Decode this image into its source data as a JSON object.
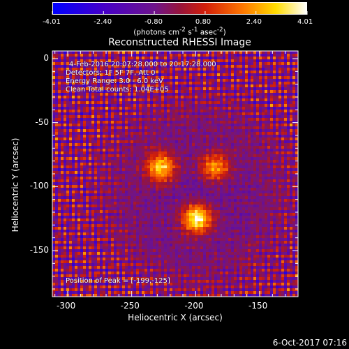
{
  "chart_data": {
    "type": "heatmap",
    "title": "Reconstructed RHESSI Image",
    "xlabel": "Heliocentric X (arcsec)",
    "ylabel": "Heliocentric Y (arcsec)",
    "xlim": [
      -312,
      -120
    ],
    "ylim": [
      -186,
      6
    ],
    "xticks": [
      -300,
      -250,
      -200,
      -150
    ],
    "yticks": [
      0,
      -50,
      -100,
      -150
    ],
    "colorbar": {
      "range": [
        -4.01,
        4.01
      ],
      "ticks": [
        -4.01,
        -2.4,
        -0.8,
        0.8,
        2.4,
        4.01
      ],
      "tick_labels": [
        "-4.01",
        "-2.40",
        "-0.80",
        "0.80",
        "2.40",
        "4.01"
      ],
      "units_prefix": "(photons cm",
      "units_exp1": "-2",
      "units_mid1": " s",
      "units_exp2": "-1",
      "units_mid2": " asec",
      "units_exp3": "-2",
      "units_suffix": ")"
    },
    "sources": [
      {
        "x": -227,
        "y": -85,
        "peak": 3.3
      },
      {
        "x": -199,
        "y": -125,
        "peak": 4.01
      },
      {
        "x": -185,
        "y": -85,
        "peak": 2.6
      }
    ],
    "annotations": [
      "4-Feb-2016 20:07:28.000 to 20:17:28.000",
      "Detectors: 1F 5F 7F, Att 0",
      "Energy Range: 3.0 - 6.0 keV",
      "Clean     Total counts: 1.04E+05"
    ],
    "peak_label": "Position of Peak = [-199,-125]"
  },
  "footer": {
    "timestamp": "6-Oct-2017 07:16"
  },
  "colors": {
    "background": "#000000",
    "axes": "#ffffff"
  }
}
